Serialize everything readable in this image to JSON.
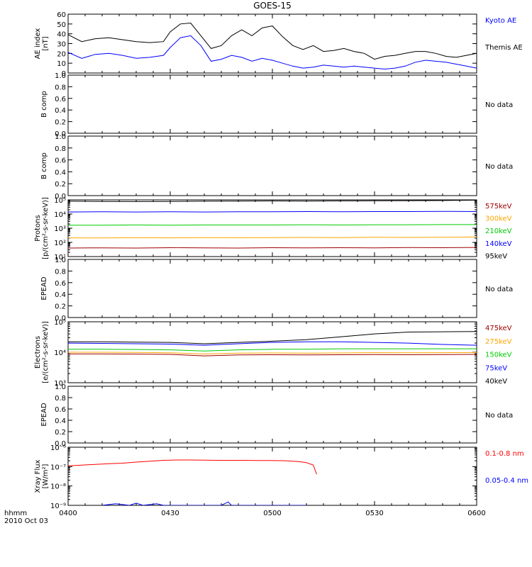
{
  "title": "GOES-15",
  "footer": {
    "unit": "hhmm",
    "date": "2010 Oct 03"
  },
  "x_axis": {
    "ticks": [
      {
        "t": 0,
        "label": "0400"
      },
      {
        "t": 30,
        "label": "0430"
      },
      {
        "t": 60,
        "label": "0500"
      },
      {
        "t": 90,
        "label": "0530"
      },
      {
        "t": 120,
        "label": "0600"
      }
    ]
  },
  "chart_data": [
    {
      "type": "line",
      "panel": "ae",
      "ylabel_lines": [
        "AE index",
        "[nT]"
      ],
      "ylim": [
        0,
        60
      ],
      "scale": "linear",
      "yticks": [
        {
          "v": 0,
          "label": "0"
        },
        {
          "v": 10,
          "label": "10"
        },
        {
          "v": 20,
          "label": "20"
        },
        {
          "v": 30,
          "label": "30"
        },
        {
          "v": 40,
          "label": "40"
        },
        {
          "v": 50,
          "label": "50"
        },
        {
          "v": 60,
          "label": "60"
        }
      ],
      "x": [
        0,
        4,
        8,
        12,
        16,
        20,
        24,
        28,
        30,
        33,
        36,
        39,
        42,
        45,
        48,
        51,
        54,
        57,
        60,
        63,
        66,
        69,
        72,
        75,
        78,
        81,
        84,
        87,
        90,
        93,
        96,
        99,
        102,
        105,
        108,
        111,
        114,
        117,
        120
      ],
      "series": [
        {
          "name": "Kyoto AE",
          "color": "#0000ff",
          "values": [
            21,
            15,
            19,
            20,
            18,
            15,
            16,
            18,
            26,
            36,
            38,
            28,
            12,
            14,
            18,
            16,
            12,
            15,
            13,
            10,
            7,
            5,
            6,
            8,
            7,
            6,
            7,
            6,
            5,
            4,
            5,
            7,
            11,
            13,
            12,
            11,
            9,
            7,
            5
          ]
        },
        {
          "name": "Themis AE",
          "color": "#000000",
          "values": [
            39,
            32,
            35,
            36,
            34,
            32,
            31,
            32,
            42,
            50,
            51,
            38,
            25,
            28,
            38,
            44,
            38,
            46,
            48,
            37,
            28,
            24,
            28,
            22,
            23,
            25,
            22,
            20,
            14,
            17,
            18,
            20,
            22,
            22,
            20,
            17,
            16,
            18,
            20
          ]
        }
      ]
    },
    {
      "type": "line",
      "panel": "b1",
      "ylabel_lines": [
        "B comp"
      ],
      "ylim": [
        0,
        1
      ],
      "scale": "linear",
      "yticks": [
        {
          "v": 0,
          "label": "0.0"
        },
        {
          "v": 0.2,
          "label": "0.2"
        },
        {
          "v": 0.4,
          "label": "0.4"
        },
        {
          "v": 0.6,
          "label": "0.6"
        },
        {
          "v": 0.8,
          "label": "0.8"
        },
        {
          "v": 1,
          "label": "1.0"
        }
      ],
      "note": "No data",
      "series": []
    },
    {
      "type": "line",
      "panel": "b2",
      "ylabel_lines": [
        "B comp"
      ],
      "ylim": [
        0,
        1
      ],
      "scale": "linear",
      "yticks": [
        {
          "v": 0,
          "label": "0.0"
        },
        {
          "v": 0.2,
          "label": "0.2"
        },
        {
          "v": 0.4,
          "label": "0.4"
        },
        {
          "v": 0.6,
          "label": "0.6"
        },
        {
          "v": 0.8,
          "label": "0.8"
        },
        {
          "v": 1,
          "label": "1.0"
        }
      ],
      "note": "No data",
      "series": []
    },
    {
      "type": "line",
      "panel": "protons",
      "ylabel_lines": [
        "Protons",
        "[p/(cm²-s-sr-keV)]"
      ],
      "ylim": [
        10,
        100000
      ],
      "scale": "log",
      "yticks": [
        {
          "v": 10,
          "label": "10¹"
        },
        {
          "v": 100,
          "label": "10²"
        },
        {
          "v": 1000,
          "label": "10³"
        },
        {
          "v": 10000,
          "label": "10⁴"
        },
        {
          "v": 100000,
          "label": "10⁵"
        }
      ],
      "x": [
        0,
        10,
        20,
        30,
        40,
        50,
        60,
        70,
        80,
        90,
        100,
        110,
        120
      ],
      "series": [
        {
          "name": "575keV",
          "color": "#a00000",
          "values": [
            40,
            41,
            40,
            42,
            41,
            40,
            42,
            41,
            42,
            41,
            43,
            42,
            44
          ]
        },
        {
          "name": "300keV",
          "color": "#ffa500",
          "values": [
            210,
            205,
            215,
            210,
            220,
            215,
            220,
            225,
            220,
            230,
            225,
            230,
            240
          ]
        },
        {
          "name": "210keV",
          "color": "#00cc00",
          "values": [
            1650,
            1650,
            1700,
            1650,
            1700,
            1700,
            1700,
            1750,
            1700,
            1750,
            1750,
            1800,
            1800
          ]
        },
        {
          "name": "140keV",
          "color": "#0000ff",
          "values": [
            14000,
            14500,
            14000,
            14500,
            14000,
            14500,
            14500,
            15000,
            14500,
            15000,
            15000,
            15500,
            15000
          ]
        },
        {
          "name": "95keV",
          "color": "#000000",
          "values": [
            80000,
            78000,
            76000,
            78000,
            80000,
            82000,
            84000,
            82000,
            85000,
            86000,
            88000,
            90000,
            95000
          ]
        }
      ]
    },
    {
      "type": "line",
      "panel": "epead1",
      "ylabel_lines": [
        "EPEAD"
      ],
      "ylim": [
        0,
        1
      ],
      "scale": "linear",
      "yticks": [
        {
          "v": 0,
          "label": "0.0"
        },
        {
          "v": 0.2,
          "label": "0.2"
        },
        {
          "v": 0.4,
          "label": "0.4"
        },
        {
          "v": 0.6,
          "label": "0.6"
        },
        {
          "v": 0.8,
          "label": "0.8"
        },
        {
          "v": 1,
          "label": "1.0"
        }
      ],
      "note": "No data",
      "series": []
    },
    {
      "type": "line",
      "panel": "electrons",
      "ylabel_lines": [
        "Electrons",
        "[e/(cm²-s-sr-keV)]"
      ],
      "ylim": [
        1000,
        100000
      ],
      "scale": "log",
      "yticks": [
        {
          "v": 1000,
          "label": "10³"
        },
        {
          "v": 10000,
          "label": "10⁴"
        },
        {
          "v": 100000,
          "label": "10⁵"
        }
      ],
      "x": [
        0,
        10,
        20,
        30,
        40,
        50,
        60,
        70,
        80,
        90,
        100,
        110,
        120
      ],
      "series": [
        {
          "name": "475keV",
          "color": "#a00000",
          "values": [
            8800,
            8800,
            8700,
            8500,
            7600,
            8200,
            8300,
            8200,
            8300,
            8400,
            8300,
            8400,
            8500
          ]
        },
        {
          "name": "275keV",
          "color": "#ffa500",
          "values": [
            10000,
            10000,
            9900,
            9600,
            8800,
            9400,
            9500,
            9400,
            9500,
            9700,
            9600,
            9700,
            9800
          ]
        },
        {
          "name": "150keV",
          "color": "#00cc00",
          "values": [
            12500,
            12500,
            12300,
            12000,
            11000,
            12000,
            12500,
            12500,
            13000,
            13000,
            13000,
            13000,
            13000
          ]
        },
        {
          "name": "75keV",
          "color": "#0000ff",
          "values": [
            20000,
            19500,
            19000,
            18500,
            17000,
            19000,
            21000,
            22000,
            22000,
            21000,
            20000,
            18000,
            17000
          ]
        },
        {
          "name": "40keV",
          "color": "#000000",
          "values": [
            22000,
            22000,
            21500,
            21000,
            19000,
            21000,
            23000,
            26000,
            32000,
            40000,
            46000,
            47000,
            48000
          ]
        }
      ]
    },
    {
      "type": "line",
      "panel": "epead2",
      "ylabel_lines": [
        "EPEAD"
      ],
      "ylim": [
        0,
        1
      ],
      "scale": "linear",
      "yticks": [
        {
          "v": 0,
          "label": "0.0"
        },
        {
          "v": 0.2,
          "label": "0.2"
        },
        {
          "v": 0.4,
          "label": "0.4"
        },
        {
          "v": 0.6,
          "label": "0.6"
        },
        {
          "v": 0.8,
          "label": "0.8"
        },
        {
          "v": 1,
          "label": "1.0"
        }
      ],
      "note": "No data",
      "series": []
    },
    {
      "type": "line",
      "panel": "xray",
      "ylabel_lines": [
        "Xray Flux",
        "[W/m²]"
      ],
      "ylim": [
        1e-09,
        1e-06
      ],
      "scale": "log",
      "yticks": [
        {
          "v": 1e-09,
          "label": "10⁻⁹"
        },
        {
          "v": 1e-08,
          "label": "10⁻⁸"
        },
        {
          "v": 1e-07,
          "label": "10⁻⁷"
        },
        {
          "v": 1e-06,
          "label": "10⁻⁶"
        }
      ],
      "label_style": "caret",
      "series": [
        {
          "name": "0.1-0.8 nm",
          "color": "#ff0000",
          "x": [
            0,
            4,
            8,
            12,
            16,
            20,
            24,
            28,
            32,
            36,
            40,
            44,
            48,
            52,
            56,
            60,
            64,
            68,
            70,
            72,
            73
          ],
          "values": [
            1.1e-07,
            1.2e-07,
            1.3e-07,
            1.4e-07,
            1.5e-07,
            1.7e-07,
            1.9e-07,
            2.1e-07,
            2.2e-07,
            2.2e-07,
            2.15e-07,
            2.1e-07,
            2.1e-07,
            2.1e-07,
            2.05e-07,
            2.05e-07,
            2e-07,
            1.8e-07,
            1.6e-07,
            1.2e-07,
            4e-08
          ]
        },
        {
          "name": "0.05-0.4 nm",
          "color": "#0000ff",
          "x": [
            10,
            14,
            18,
            20,
            22,
            26,
            28,
            30,
            36,
            38,
            40,
            45,
            47,
            48,
            52,
            60,
            70
          ],
          "values": [
            1e-09,
            1.2e-09,
            1e-09,
            1.3e-09,
            1e-09,
            1.2e-09,
            1e-09,
            1e-09,
            1e-09,
            1e-09,
            1e-09,
            1e-09,
            1.5e-09,
            1e-09,
            1e-09,
            1e-09,
            1e-09
          ]
        }
      ]
    }
  ]
}
